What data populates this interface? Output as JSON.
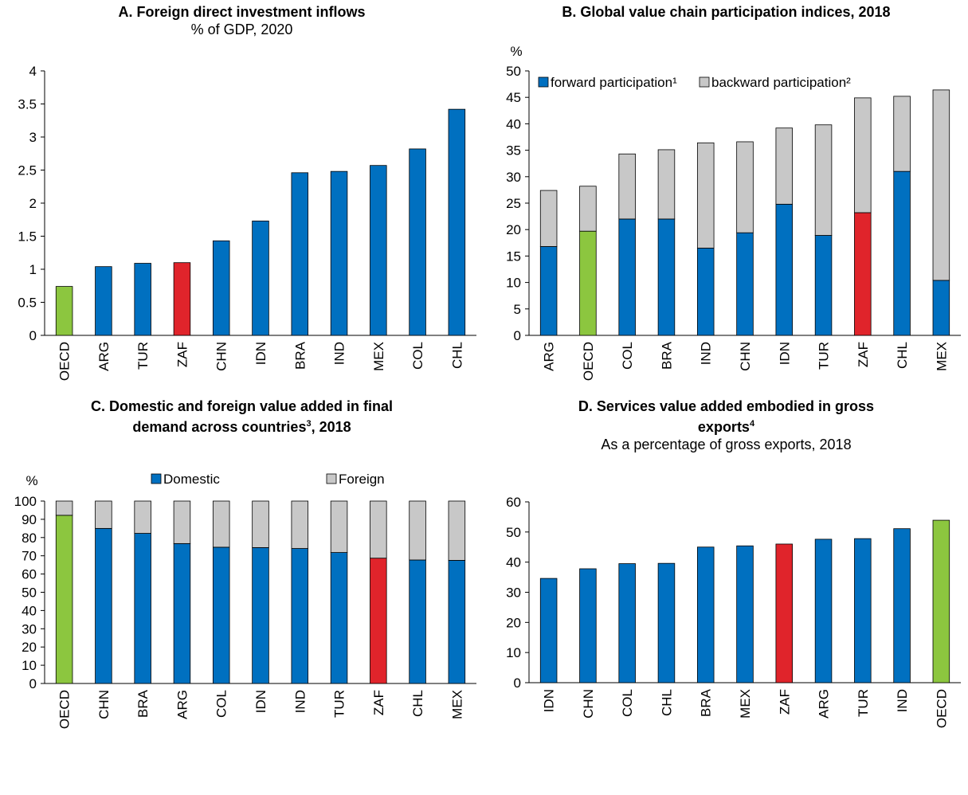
{
  "colors": {
    "blue": "#0070c0",
    "grey": "#c8c8c8",
    "green": "#8cc63f",
    "red": "#e0242b",
    "axis": "#000000"
  },
  "chart_data": [
    {
      "id": "A",
      "type": "bar",
      "title": "A. Foreign direct investment inflows",
      "subtitle": "% of GDP, 2020",
      "ylabel": "",
      "ylim": [
        0,
        4
      ],
      "yticks": [
        "0",
        "0.5",
        "1",
        "1.5",
        "2",
        "2.5",
        "3",
        "3.5",
        "4"
      ],
      "categories": [
        "OECD",
        "ARG",
        "TUR",
        "ZAF",
        "CHN",
        "IDN",
        "BRA",
        "IND",
        "MEX",
        "COL",
        "CHL"
      ],
      "values": [
        0.74,
        1.04,
        1.09,
        1.1,
        1.43,
        1.73,
        2.46,
        2.48,
        2.57,
        2.82,
        3.42
      ],
      "highlight": {
        "OECD": "green",
        "ZAF": "red"
      }
    },
    {
      "id": "B",
      "type": "bar",
      "stacked": true,
      "title": "B. Global value chain participation indices, 2018",
      "subtitle": "",
      "ylabel": "%",
      "ylim": [
        0,
        50
      ],
      "yticks": [
        "0",
        "5",
        "10",
        "15",
        "20",
        "25",
        "30",
        "35",
        "40",
        "45",
        "50"
      ],
      "legend_position": "top-left",
      "categories": [
        "ARG",
        "OECD",
        "COL",
        "BRA",
        "IND",
        "CHN",
        "IDN",
        "TUR",
        "ZAF",
        "CHL",
        "MEX"
      ],
      "series": [
        {
          "name": "forward participation¹",
          "values": [
            16.8,
            19.7,
            22.0,
            22.0,
            16.5,
            19.4,
            24.8,
            18.9,
            23.2,
            31.0,
            10.4
          ]
        },
        {
          "name": "backward participation²",
          "values": [
            10.6,
            8.5,
            12.3,
            13.1,
            19.9,
            17.2,
            14.4,
            20.9,
            21.7,
            14.2,
            36.0
          ]
        }
      ],
      "highlight": {
        "OECD": "green",
        "ZAF": "red"
      }
    },
    {
      "id": "C",
      "type": "bar",
      "stacked": true,
      "title_line1": "C. Domestic and foreign value added in final",
      "title_line2": "demand across countries",
      "title_sup": "3",
      "title_tail": ", 2018",
      "subtitle": "",
      "ylabel": "%",
      "ylim": [
        0,
        100
      ],
      "yticks": [
        "0",
        "10",
        "20",
        "30",
        "40",
        "50",
        "60",
        "70",
        "80",
        "90",
        "100"
      ],
      "legend_position": "top",
      "categories": [
        "OECD",
        "CHN",
        "BRA",
        "ARG",
        "COL",
        "IDN",
        "IND",
        "TUR",
        "ZAF",
        "CHL",
        "MEX"
      ],
      "series": [
        {
          "name": "Domestic",
          "values": [
            92.2,
            85.0,
            82.3,
            76.7,
            74.7,
            74.5,
            74.0,
            71.8,
            68.7,
            67.7,
            67.5
          ]
        },
        {
          "name": "Foreign",
          "values": [
            7.8,
            15.0,
            17.7,
            23.3,
            25.3,
            25.5,
            26.0,
            28.2,
            31.3,
            32.3,
            32.5
          ]
        }
      ],
      "highlight": {
        "OECD": "green",
        "ZAF": "red"
      }
    },
    {
      "id": "D",
      "type": "bar",
      "title_line1": "D. Services value added embodied in gross",
      "title_line2": "exports",
      "title_sup": "4",
      "subtitle": "As a percentage of gross exports, 2018",
      "ylabel": "",
      "ylim": [
        0,
        60
      ],
      "yticks": [
        "0",
        "10",
        "20",
        "30",
        "40",
        "50",
        "60"
      ],
      "categories": [
        "IDN",
        "CHN",
        "COL",
        "CHL",
        "BRA",
        "MEX",
        "ZAF",
        "ARG",
        "TUR",
        "IND",
        "OECD"
      ],
      "values": [
        34.6,
        37.8,
        39.5,
        39.6,
        45.0,
        45.4,
        46.0,
        47.6,
        47.8,
        51.1,
        53.9
      ],
      "highlight": {
        "OECD": "green",
        "ZAF": "red"
      }
    }
  ]
}
